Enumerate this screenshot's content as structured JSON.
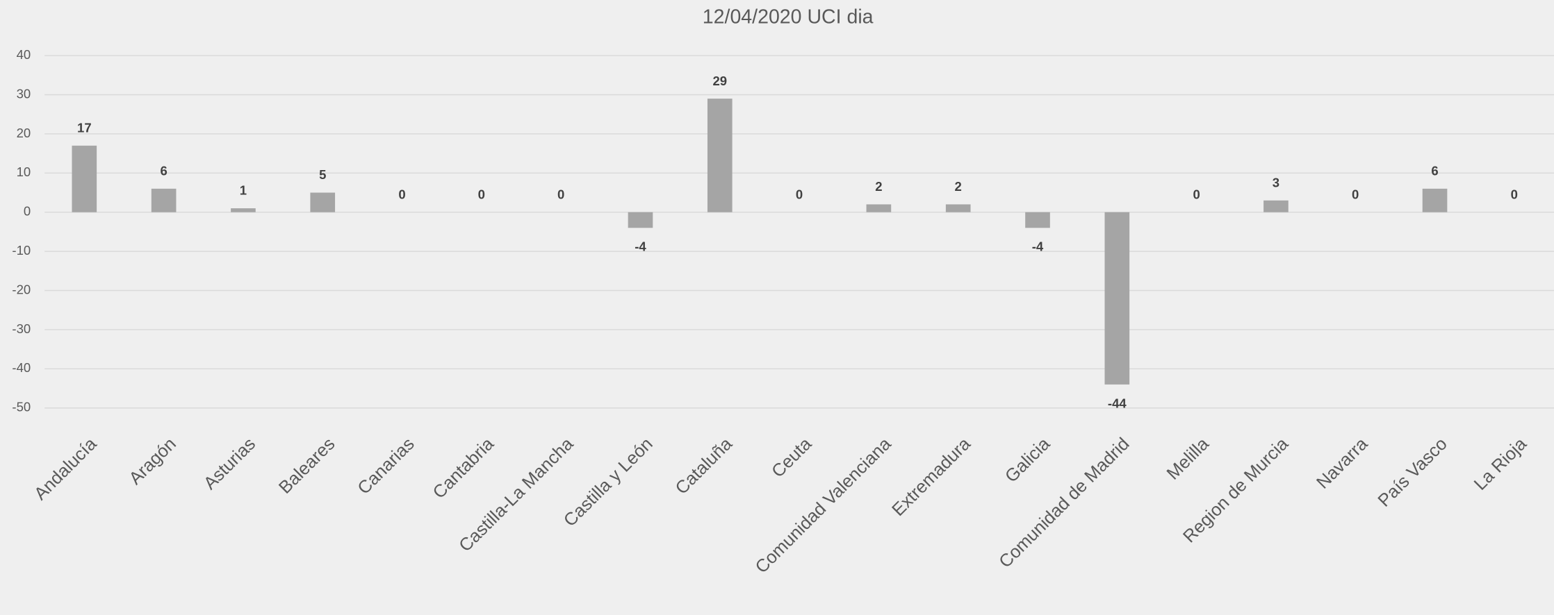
{
  "chart_data": {
    "type": "bar",
    "title": "12/04/2020 UCI dia",
    "categories": [
      "Andalucía",
      "Aragón",
      "Asturias",
      "Baleares",
      "Canarias",
      "Cantabria",
      "Castilla-La Mancha",
      "Castilla y León",
      "Cataluña",
      "Ceuta",
      "Comunidad Valenciana",
      "Extremadura",
      "Galicia",
      "Comunidad de Madrid",
      "Melilla",
      "Region de Murcia",
      "Navarra",
      "País Vasco",
      "La Rioja"
    ],
    "values": [
      17,
      6,
      1,
      5,
      0,
      0,
      0,
      -4,
      29,
      0,
      2,
      2,
      -4,
      -44,
      0,
      3,
      0,
      6,
      0
    ],
    "color": "#a5a5a5",
    "ylim": [
      -50,
      40
    ],
    "yticks": [
      -50,
      -40,
      -30,
      -20,
      -10,
      0,
      10,
      20,
      30,
      40
    ],
    "grid": true
  }
}
